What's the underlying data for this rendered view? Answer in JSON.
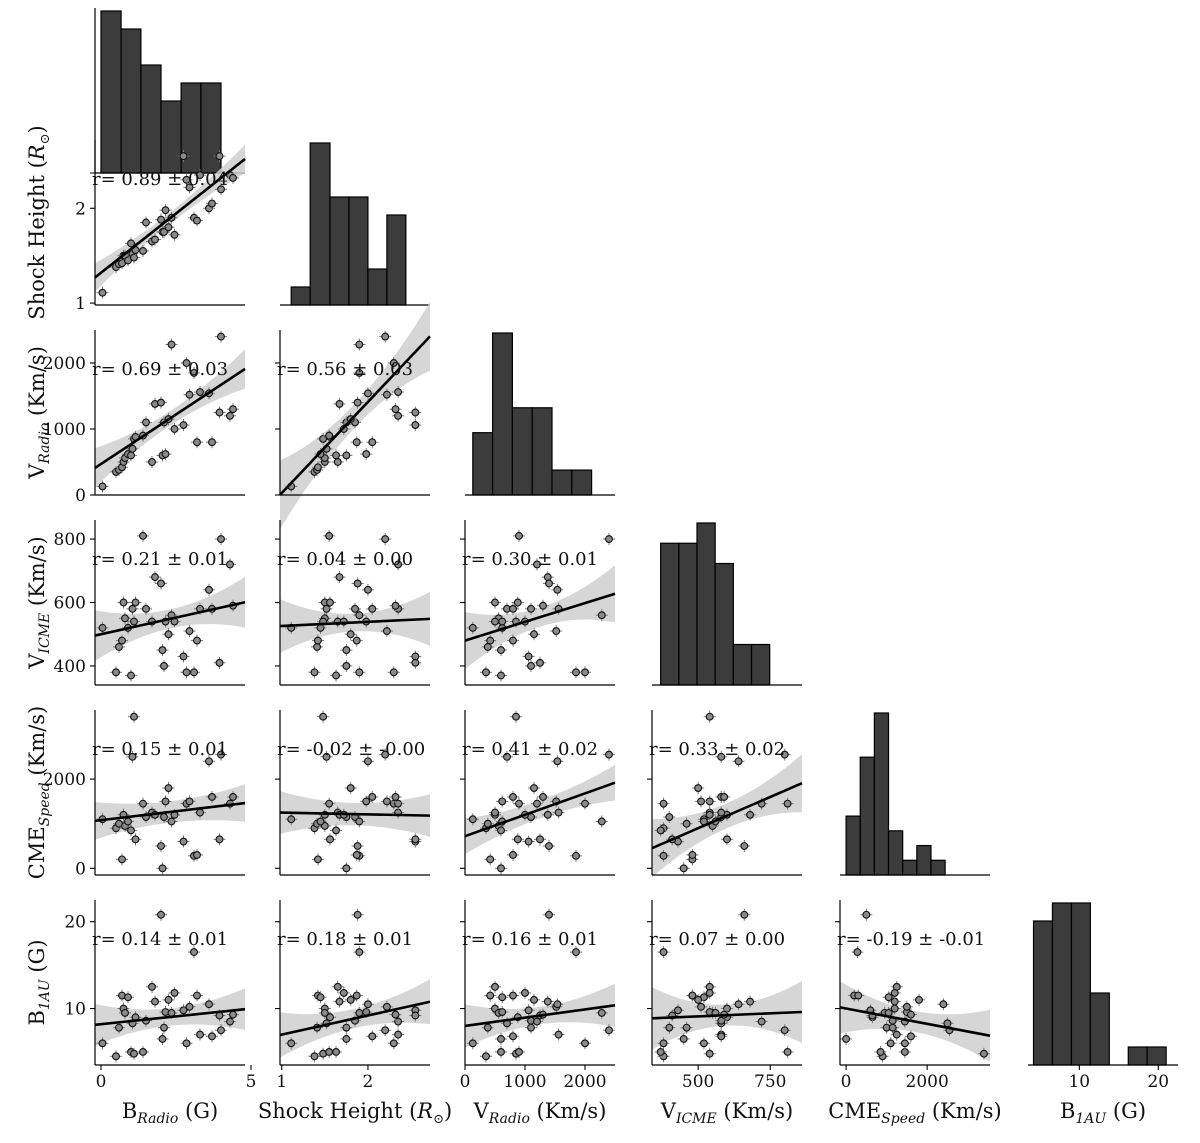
{
  "chart_data": {
    "type": "scatter",
    "variables": [
      {
        "key": "B",
        "label": "B",
        "sub": "Radio",
        "unit": " (G)",
        "lim": [
          -0.2,
          4.8
        ],
        "ticks": [
          0,
          5
        ],
        "tick_labels": [
          "0",
          "5"
        ]
      },
      {
        "key": "SH",
        "label": "Shock Height (",
        "sub": "",
        "sym": "R",
        "symsub": "⊙",
        "unit": ")",
        "lim": [
          0.98,
          2.72
        ],
        "ticks": [
          1,
          2
        ],
        "tick_labels": [
          "1",
          "2"
        ]
      },
      {
        "key": "VR",
        "label": "V",
        "sub": "Radio",
        "unit": " (Km/s)",
        "lim": [
          0,
          2500
        ],
        "ticks": [
          0,
          1000,
          2000
        ],
        "tick_labels": [
          "0",
          "1000",
          "2000"
        ]
      },
      {
        "key": "VI",
        "label": "V",
        "sub": "ICME",
        "unit": " (Km/s)",
        "lim": [
          340,
          860
        ],
        "ticks": [
          400,
          600,
          800
        ],
        "tick_labels": [
          "400",
          "600",
          "800"
        ]
      },
      {
        "key": "CME",
        "label": "CME",
        "sub": "Speed",
        "unit": " (Km/s)",
        "lim": [
          -150,
          3550
        ],
        "ticks": [
          0,
          2000
        ],
        "tick_labels": [
          "0",
          "2000"
        ]
      },
      {
        "key": "B1",
        "label": "B",
        "sub": "1AU",
        "unit": " (G)",
        "lim": [
          3.5,
          22.5
        ],
        "ticks": [
          10,
          20
        ],
        "tick_labels": [
          "10",
          "20"
        ]
      }
    ],
    "xaxis_ticks_override": {
      "VI": {
        "ticks": [
          500,
          750
        ],
        "tick_labels": [
          "500",
          "750"
        ]
      }
    },
    "diagonal_histograms": [
      {
        "var": "B",
        "bins": [
          0,
          0.67,
          1.33,
          2.0,
          2.67,
          3.33,
          4.0,
          4.67
        ],
        "counts": [
          9,
          8,
          6,
          4,
          5,
          5,
          0
        ]
      },
      {
        "var": "SH",
        "bins": [
          1.11,
          1.33,
          1.56,
          1.78,
          2.0,
          2.22,
          2.44,
          2.67
        ],
        "counts": [
          1,
          9,
          6,
          6,
          2,
          5,
          0
        ]
      },
      {
        "var": "VR",
        "bins": [
          130,
          460,
          790,
          1120,
          1450,
          1780,
          2110,
          2440
        ],
        "counts": [
          5,
          13,
          7,
          7,
          2,
          2,
          0
        ]
      },
      {
        "var": "VI",
        "bins": [
          370,
          433,
          496,
          559,
          622,
          685,
          748,
          811
        ],
        "counts": [
          7,
          7,
          8,
          6,
          2,
          2,
          0
        ]
      },
      {
        "var": "CME",
        "bins": [
          0,
          349,
          698,
          1047,
          1396,
          1745,
          2094,
          2443,
          2792,
          3141
        ],
        "counts": [
          4,
          8,
          11,
          3,
          1,
          2,
          1,
          0,
          0
        ]
      },
      {
        "var": "B1",
        "bins": [
          4.2,
          6.6,
          9.0,
          11.4,
          13.8,
          16.2,
          18.6,
          21.0
        ],
        "counts": [
          8,
          9,
          9,
          4,
          0,
          1,
          1
        ]
      }
    ],
    "points": [
      {
        "B": 0.05,
        "SH": 1.11,
        "VR": 130,
        "VI": 520,
        "CME": 1100,
        "B1": 6.0
      },
      {
        "B": 0.5,
        "SH": 1.38,
        "VR": 350,
        "VI": 380,
        "CME": 900,
        "B1": 4.5
      },
      {
        "B": 0.6,
        "SH": 1.41,
        "VR": 380,
        "VI": 460,
        "CME": 1000,
        "B1": 7.8
      },
      {
        "B": 0.7,
        "SH": 1.42,
        "VR": 420,
        "VI": 480,
        "CME": 200,
        "B1": 11.5
      },
      {
        "B": 0.75,
        "SH": 1.5,
        "VR": 500,
        "VI": 600,
        "CME": 1200,
        "B1": 10.0
      },
      {
        "B": 0.8,
        "SH": 1.5,
        "VR": 560,
        "VI": 550,
        "CME": 950,
        "B1": 9.5
      },
      {
        "B": 0.9,
        "SH": 1.45,
        "VR": 620,
        "VI": 520,
        "CME": 1050,
        "B1": 11.3
      },
      {
        "B": 1.0,
        "SH": 1.63,
        "VR": 600,
        "VI": 370,
        "CME": 850,
        "B1": 5.0
      },
      {
        "B": 1.05,
        "SH": 1.52,
        "VR": 700,
        "VI": 580,
        "CME": 2500,
        "B1": 8.3
      },
      {
        "B": 1.1,
        "SH": 1.48,
        "VR": 850,
        "VI": 540,
        "CME": 3400,
        "B1": 4.8
      },
      {
        "B": 1.15,
        "SH": 1.56,
        "VR": 880,
        "VI": 600,
        "CME": 650,
        "B1": 9.0
      },
      {
        "B": 1.4,
        "SH": 1.55,
        "VR": 900,
        "VI": 810,
        "CME": 1450,
        "B1": 5.0
      },
      {
        "B": 1.5,
        "SH": 1.85,
        "VR": 1100,
        "VI": 580,
        "CME": 1150,
        "B1": 8.6
      },
      {
        "B": 1.7,
        "SH": 1.65,
        "VR": 500,
        "VI": 540,
        "CME": 1250,
        "B1": 12.5
      },
      {
        "B": 1.8,
        "SH": 1.67,
        "VR": 1380,
        "VI": 680,
        "CME": 1200,
        "B1": 10.8
      },
      {
        "B": 2.0,
        "SH": 1.88,
        "VR": 1400,
        "VI": 660,
        "CME": 500,
        "B1": 20.8
      },
      {
        "B": 2.05,
        "SH": 1.75,
        "VR": 600,
        "VI": 450,
        "CME": 0,
        "B1": 6.5
      },
      {
        "B": 2.1,
        "SH": 1.75,
        "VR": 1100,
        "VI": 400,
        "CME": 1150,
        "B1": 7.8
      },
      {
        "B": 2.15,
        "SH": 1.98,
        "VR": 620,
        "VI": 540,
        "CME": 1500,
        "B1": 9.6
      },
      {
        "B": 2.25,
        "SH": 1.8,
        "VR": 1150,
        "VI": 500,
        "CME": 1800,
        "B1": 11.0
      },
      {
        "B": 2.35,
        "SH": 1.9,
        "VR": 2280,
        "VI": 560,
        "CME": 1050,
        "B1": 9.5
      },
      {
        "B": 2.45,
        "SH": 1.72,
        "VR": 1000,
        "VI": 540,
        "CME": 1200,
        "B1": 11.8
      },
      {
        "B": 2.75,
        "SH": 2.55,
        "VR": 1060,
        "VI": 430,
        "CME": 600,
        "B1": 9.8
      },
      {
        "B": 2.85,
        "SH": 2.3,
        "VR": 2000,
        "VI": 380,
        "CME": 1450,
        "B1": 6.0
      },
      {
        "B": 2.95,
        "SH": 2.22,
        "VR": 1520,
        "VI": 510,
        "CME": 1500,
        "B1": 10.2
      },
      {
        "B": 3.1,
        "SH": 1.9,
        "VR": 1850,
        "VI": 380,
        "CME": 280,
        "B1": 16.5
      },
      {
        "B": 3.2,
        "SH": 1.87,
        "VR": 800,
        "VI": 480,
        "CME": 300,
        "B1": 11.5
      },
      {
        "B": 3.3,
        "SH": 2.35,
        "VR": 1560,
        "VI": 580,
        "CME": 1250,
        "B1": 7.0
      },
      {
        "B": 3.6,
        "SH": 2.0,
        "VR": 1540,
        "VI": 640,
        "CME": 2400,
        "B1": 10.5
      },
      {
        "B": 3.7,
        "SH": 2.05,
        "VR": 800,
        "VI": 580,
        "CME": 1600,
        "B1": 6.8
      },
      {
        "B": 3.95,
        "SH": 2.55,
        "VR": 1250,
        "VI": 410,
        "CME": 650,
        "B1": 9.2
      },
      {
        "B": 4.0,
        "SH": 2.2,
        "VR": 2400,
        "VI": 800,
        "CME": 2550,
        "B1": 7.5
      },
      {
        "B": 4.3,
        "SH": 2.35,
        "VR": 1200,
        "VI": 720,
        "CME": 1450,
        "B1": 8.5
      },
      {
        "B": 4.4,
        "SH": 2.32,
        "VR": 1300,
        "VI": 590,
        "CME": 1600,
        "B1": 9.3
      }
    ],
    "correlations": [
      {
        "row": "SH",
        "col": "B",
        "text": "r= 0.89 ± 0.04",
        "fit": [
          1.32,
          0.25
        ],
        "band": [
          0.06,
          0.15
        ]
      },
      {
        "row": "VR",
        "col": "B",
        "text": "r= 0.69 ± 0.03",
        "fit": [
          470,
          300
        ],
        "band": [
          110,
          300
        ]
      },
      {
        "row": "VR",
        "col": "SH",
        "text": "r= 0.56 ± 0.03",
        "fit": [
          -1350,
          1380
        ],
        "band": [
          180,
          520
        ]
      },
      {
        "row": "VI",
        "col": "B",
        "text": "r= 0.21 ± 0.01",
        "fit": [
          500,
          21
        ],
        "band": [
          30,
          80
        ]
      },
      {
        "row": "VI",
        "col": "SH",
        "text": "r= 0.04 ± 0.00",
        "fit": [
          513,
          13
        ],
        "band": [
          28,
          85
        ]
      },
      {
        "row": "VI",
        "col": "VR",
        "text": "r= 0.30 ± 0.01",
        "fit": [
          480,
          0.059
        ],
        "band": [
          30,
          90
        ]
      },
      {
        "row": "CME",
        "col": "B",
        "text": "r= 0.15 ± 0.01",
        "fit": [
          1080,
          80
        ],
        "band": [
          240,
          420
        ]
      },
      {
        "row": "CME",
        "col": "SH",
        "text": "r= -0.02 ± -0.00",
        "fit": [
          1290,
          -40
        ],
        "band": [
          250,
          480
        ]
      },
      {
        "row": "CME",
        "col": "VR",
        "text": "r= 0.41 ± 0.02",
        "fit": [
          720,
          0.48
        ],
        "band": [
          200,
          400
        ]
      },
      {
        "row": "CME",
        "col": "VI",
        "text": "r= 0.33 ± 0.02",
        "fit": [
          -500,
          2.8
        ],
        "band": [
          280,
          650
        ]
      },
      {
        "row": "B1",
        "col": "B",
        "text": "r= 0.14 ± 0.01",
        "fit": [
          8.2,
          0.36
        ],
        "band": [
          1.0,
          2.4
        ]
      },
      {
        "row": "B1",
        "col": "SH",
        "text": "r= 0.18 ± 0.01",
        "fit": [
          4.8,
          2.2
        ],
        "band": [
          1.1,
          2.6
        ]
      },
      {
        "row": "B1",
        "col": "VR",
        "text": "r= 0.16 ± 0.01",
        "fit": [
          8.0,
          0.00095
        ],
        "band": [
          1.0,
          2.5
        ]
      },
      {
        "row": "B1",
        "col": "VI",
        "text": "r= 0.07 ± 0.00",
        "fit": [
          8.4,
          0.0014
        ],
        "band": [
          1.2,
          3.6
        ]
      },
      {
        "row": "B1",
        "col": "CME",
        "text": "r= -0.19 ± -0.01",
        "fit": [
          10.0,
          -0.00088
        ],
        "band": [
          1.2,
          3.0
        ]
      }
    ]
  }
}
